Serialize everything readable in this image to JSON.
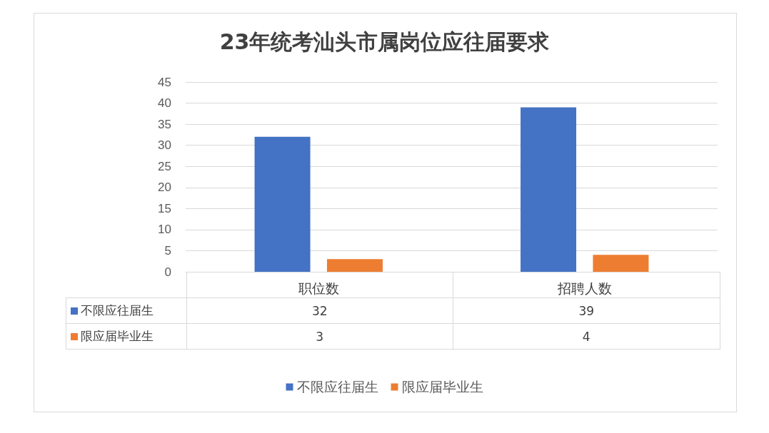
{
  "chart_data": {
    "type": "bar",
    "title": "23年统考汕头市属岗位应往届要求",
    "categories": [
      "职位数",
      "招聘人数"
    ],
    "series": [
      {
        "name": "不限应往届生",
        "color": "#4472c4",
        "values": [
          32,
          39
        ]
      },
      {
        "name": "限应届毕业生",
        "color": "#ed7d31",
        "values": [
          3,
          4
        ]
      }
    ],
    "ylim": [
      0,
      45
    ],
    "yticks": [
      0,
      5,
      10,
      15,
      20,
      25,
      30,
      35,
      40,
      45
    ],
    "grid": "y",
    "legend": "bottom",
    "data_labels": true
  }
}
